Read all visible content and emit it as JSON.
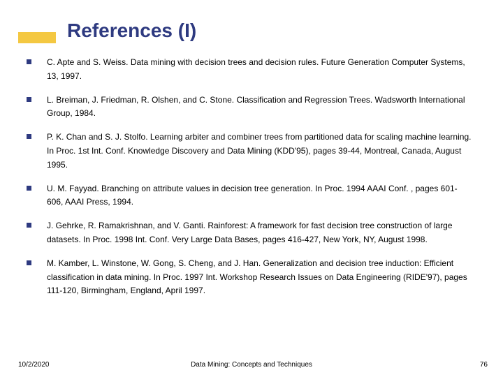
{
  "accent_color": "#f4c842",
  "title_color": "#2e3a80",
  "bullet_color": "#2e3a80",
  "title": "References (I)",
  "references": [
    "C. Apte and S. Weiss. Data mining with decision trees and decision rules. Future Generation Computer Systems, 13, 1997.",
    "L. Breiman, J. Friedman, R. Olshen, and C. Stone. Classification and Regression Trees. Wadsworth International Group, 1984.",
    "P. K. Chan and S. J. Stolfo. Learning arbiter and combiner trees from partitioned data for scaling machine learning. In Proc. 1st Int. Conf. Knowledge Discovery and Data Mining (KDD'95), pages 39-44, Montreal, Canada, August 1995.",
    "U. M. Fayyad. Branching on attribute values in decision tree generation. In Proc. 1994 AAAI Conf. , pages 601-606, AAAI Press, 1994.",
    "J. Gehrke, R. Ramakrishnan, and V. Ganti. Rainforest: A framework for fast decision tree construction of large datasets. In Proc. 1998 Int. Conf. Very Large Data Bases, pages 416-427, New York, NY, August 1998.",
    "M. Kamber, L. Winstone, W. Gong, S. Cheng, and J. Han. Generalization and decision tree induction: Efficient classification in data mining. In  Proc. 1997 Int. Workshop Research Issues on Data Engineering (RIDE'97),  pages 111-120, Birmingham, England, April 1997."
  ],
  "footer": {
    "date": "10/2/2020",
    "center": "Data Mining: Concepts and Techniques",
    "page": "76"
  }
}
